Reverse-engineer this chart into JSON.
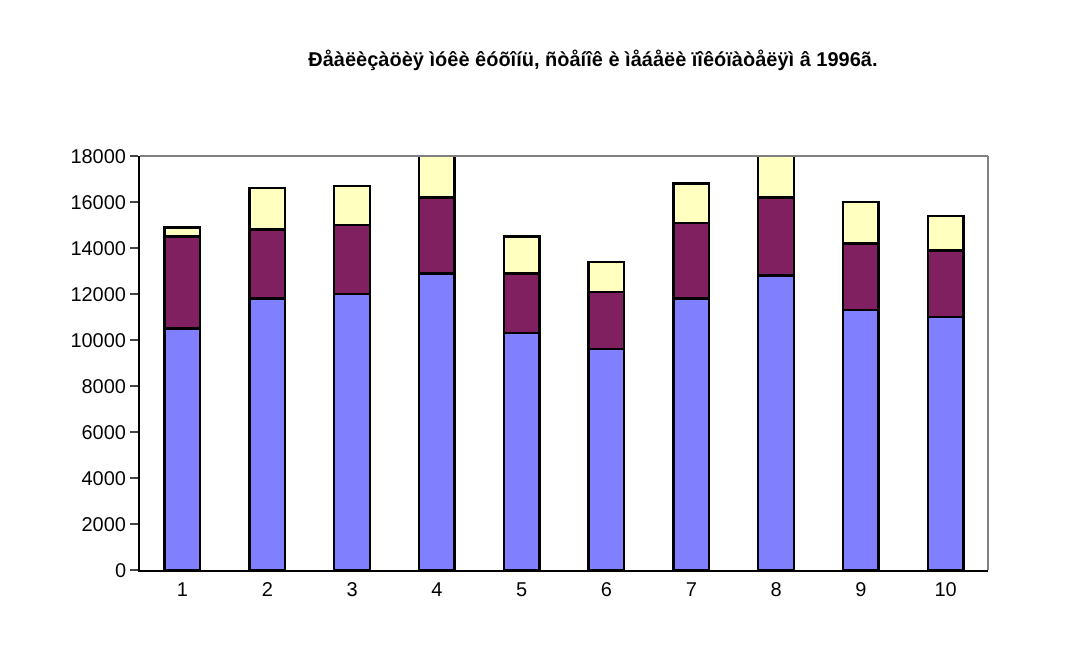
{
  "chart_data": {
    "type": "bar",
    "stacked": true,
    "title": "Ðåàëèçàöèÿ ìóêè êóõîíü, ñòåíîê è ìåáåëè ïîêóïàòåëÿì â 1996ã.",
    "categories": [
      "1",
      "2",
      "3",
      "4",
      "5",
      "6",
      "7",
      "8",
      "9",
      "10"
    ],
    "series": [
      {
        "color": "#8080ff",
        "values": [
          10500,
          11800,
          12000,
          12900,
          10300,
          9600,
          11800,
          12800,
          11300,
          11000
        ]
      },
      {
        "color": "#802060",
        "values": [
          4000,
          3000,
          3000,
          3300,
          2600,
          2500,
          3300,
          3400,
          2900,
          2900
        ]
      },
      {
        "color": "#ffffc0",
        "values": [
          400,
          1800,
          1700,
          1800,
          1600,
          1300,
          1700,
          1800,
          1800,
          1500
        ]
      }
    ],
    "ylim": [
      0,
      18000
    ],
    "yticks": [
      0,
      2000,
      4000,
      6000,
      8000,
      10000,
      12000,
      14000,
      16000,
      18000
    ],
    "grid": false
  }
}
